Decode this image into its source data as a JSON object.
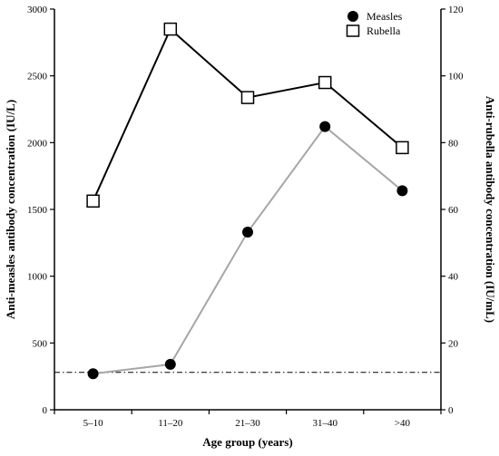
{
  "chart_data": {
    "type": "line",
    "categories": [
      "5–10",
      "11–20",
      "21–30",
      "31–40",
      ">40"
    ],
    "xlabel": "Age group (years)",
    "ylabel_left": "Anti-measles antibody concentration (IU/L)",
    "ylabel_right": "Anti-rubella antibody concentration (IU/mL)",
    "ylim_left": [
      0,
      3000
    ],
    "yticks_left": [
      0,
      500,
      1000,
      1500,
      2000,
      2500,
      3000
    ],
    "ylim_right": [
      0,
      120
    ],
    "yticks_right": [
      0,
      20,
      40,
      60,
      80,
      100,
      120
    ],
    "series": [
      {
        "name": "Measles",
        "axis": "left",
        "color": "#a6a6a6",
        "marker": "filled-circle",
        "values": [
          270,
          340,
          1330,
          2120,
          1640
        ]
      },
      {
        "name": "Rubella",
        "axis": "right",
        "color": "#000000",
        "marker": "open-square",
        "values": [
          62.5,
          114,
          93.5,
          98,
          78.5
        ]
      }
    ],
    "reference_line": {
      "axis": "left",
      "value": 280,
      "style": "dash-dot"
    },
    "legend_position": "top-right",
    "grid": false
  }
}
